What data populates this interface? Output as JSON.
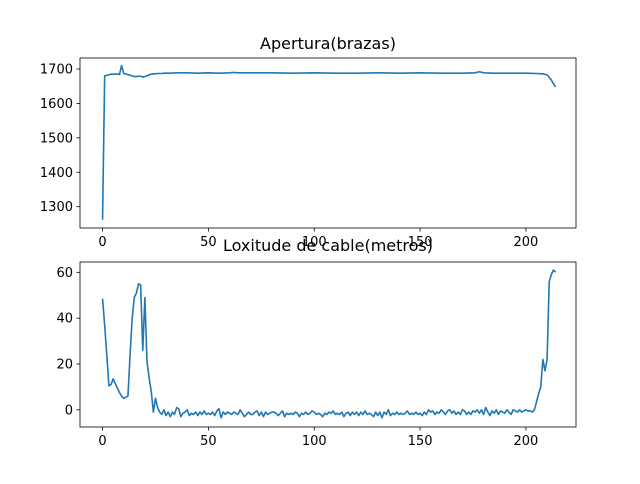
{
  "chart_data": [
    {
      "type": "line",
      "title": "Apertura(brazas)",
      "xlabel": "",
      "ylabel": "",
      "xlim": [
        -10.65,
        223.65
      ],
      "ylim": [
        1238,
        1732
      ],
      "xticks": [
        0,
        50,
        100,
        150,
        200
      ],
      "yticks": [
        1300,
        1400,
        1500,
        1600,
        1700
      ],
      "grid": false,
      "series": [
        {
          "color": "#1f77b4",
          "points": [
            [
              0,
              1262
            ],
            [
              1,
              1680
            ],
            [
              2,
              1682
            ],
            [
              3,
              1683
            ],
            [
              4,
              1685
            ],
            [
              5,
              1685
            ],
            [
              6,
              1685
            ],
            [
              7,
              1686
            ],
            [
              8,
              1684
            ],
            [
              9,
              1710
            ],
            [
              10,
              1687
            ],
            [
              11,
              1685
            ],
            [
              12,
              1684
            ],
            [
              13,
              1682
            ],
            [
              14,
              1680
            ],
            [
              15,
              1678
            ],
            [
              16,
              1678
            ],
            [
              17,
              1679
            ],
            [
              18,
              1679
            ],
            [
              19,
              1677
            ],
            [
              20,
              1678
            ],
            [
              21,
              1680
            ],
            [
              22,
              1683
            ],
            [
              23,
              1685
            ],
            [
              24,
              1686
            ],
            [
              25,
              1686
            ],
            [
              26,
              1687
            ],
            [
              27,
              1687
            ],
            [
              28,
              1687
            ],
            [
              29,
              1688
            ],
            [
              30,
              1688
            ],
            [
              32,
              1688
            ],
            [
              35,
              1689
            ],
            [
              40,
              1689
            ],
            [
              45,
              1688
            ],
            [
              50,
              1689
            ],
            [
              55,
              1688
            ],
            [
              60,
              1689
            ],
            [
              62,
              1690
            ],
            [
              64,
              1689
            ],
            [
              70,
              1689
            ],
            [
              80,
              1689
            ],
            [
              90,
              1688
            ],
            [
              100,
              1689
            ],
            [
              110,
              1688
            ],
            [
              120,
              1688
            ],
            [
              130,
              1689
            ],
            [
              140,
              1688
            ],
            [
              150,
              1689
            ],
            [
              160,
              1688
            ],
            [
              170,
              1688
            ],
            [
              176,
              1689
            ],
            [
              178,
              1692
            ],
            [
              180,
              1689
            ],
            [
              185,
              1688
            ],
            [
              190,
              1688
            ],
            [
              195,
              1688
            ],
            [
              200,
              1688
            ],
            [
              205,
              1687
            ],
            [
              208,
              1686
            ],
            [
              210,
              1683
            ],
            [
              211,
              1676
            ],
            [
              212,
              1668
            ],
            [
              213,
              1657
            ],
            [
              214,
              1648
            ]
          ]
        }
      ]
    },
    {
      "type": "line",
      "title": "Loxitude de cable(metros)",
      "xlabel": "",
      "ylabel": "",
      "xlim": [
        -10.65,
        223.65
      ],
      "ylim": [
        -7.5,
        64.5
      ],
      "xticks": [
        0,
        50,
        100,
        150,
        200
      ],
      "yticks": [
        0,
        20,
        40,
        60
      ],
      "grid": false,
      "series": [
        {
          "color": "#1f77b4",
          "points": [
            [
              0,
              48.5
            ],
            [
              1,
              37
            ],
            [
              2,
              24
            ],
            [
              3,
              10.5
            ],
            [
              4,
              11
            ],
            [
              5,
              13.5
            ],
            [
              6,
              11.5
            ],
            [
              7,
              9.5
            ],
            [
              8,
              7.5
            ],
            [
              9,
              6
            ],
            [
              10,
              5
            ],
            [
              11,
              5.5
            ],
            [
              12,
              6
            ],
            [
              13,
              24
            ],
            [
              14,
              40
            ],
            [
              15,
              49
            ],
            [
              16,
              51
            ],
            [
              17,
              55
            ],
            [
              18,
              54.5
            ],
            [
              19,
              26
            ],
            [
              20,
              49
            ],
            [
              21,
              21
            ],
            [
              22,
              14
            ],
            [
              23,
              8
            ],
            [
              24,
              -1
            ],
            [
              25,
              5
            ],
            [
              26,
              1
            ],
            [
              27,
              -1
            ],
            [
              28,
              -2
            ],
            [
              29,
              0
            ],
            [
              30,
              -2.5
            ],
            [
              31,
              -1
            ],
            [
              32,
              -3
            ],
            [
              33,
              -1
            ],
            [
              34,
              -2
            ],
            [
              35,
              1
            ],
            [
              36,
              0.5
            ],
            [
              37,
              -3
            ],
            [
              38,
              -1.5
            ],
            [
              39,
              -1
            ],
            [
              40,
              0
            ],
            [
              41,
              -2.5
            ],
            [
              42,
              -1.5
            ],
            [
              43,
              -2
            ],
            [
              44,
              -1
            ],
            [
              45,
              -2.5
            ],
            [
              46,
              -1
            ],
            [
              47,
              -2
            ],
            [
              48,
              -0.5
            ],
            [
              49,
              -2
            ],
            [
              50,
              -1.5
            ],
            [
              51,
              -2
            ],
            [
              52,
              -1
            ],
            [
              53,
              -2.5
            ],
            [
              54,
              -0.5
            ],
            [
              55,
              0.5
            ],
            [
              56,
              -3.5
            ],
            [
              57,
              -1
            ],
            [
              58,
              -2
            ],
            [
              59,
              -1
            ],
            [
              60,
              -1.5
            ],
            [
              61,
              -2
            ],
            [
              62,
              -1
            ],
            [
              63,
              -1.5
            ],
            [
              64,
              -2
            ],
            [
              65,
              0
            ],
            [
              66,
              -1.5
            ],
            [
              67,
              -3
            ],
            [
              68,
              -2
            ],
            [
              69,
              -1
            ],
            [
              70,
              -2
            ],
            [
              71,
              -2
            ],
            [
              72,
              -1
            ],
            [
              73,
              -0.5
            ],
            [
              74,
              -2.5
            ],
            [
              75,
              -1
            ],
            [
              76,
              -3
            ],
            [
              77,
              -1
            ],
            [
              78,
              -2
            ],
            [
              79,
              -1.5
            ],
            [
              80,
              -1
            ],
            [
              81,
              -1
            ],
            [
              82,
              -1.5
            ],
            [
              83,
              -2.5
            ],
            [
              84,
              -1.5
            ],
            [
              85,
              -0.5
            ],
            [
              86,
              -3
            ],
            [
              87,
              -1.5
            ],
            [
              88,
              -2
            ],
            [
              89,
              -1.5
            ],
            [
              90,
              -2
            ],
            [
              91,
              -1
            ],
            [
              92,
              -1.5
            ],
            [
              93,
              -3
            ],
            [
              94,
              -1.5
            ],
            [
              95,
              -2
            ],
            [
              96,
              -1
            ],
            [
              97,
              -2
            ],
            [
              98,
              -1.5
            ],
            [
              99,
              -0.5
            ],
            [
              100,
              -1
            ],
            [
              101,
              -2
            ],
            [
              102,
              -1.5
            ],
            [
              103,
              -2
            ],
            [
              104,
              -3
            ],
            [
              105,
              -1.5
            ],
            [
              106,
              -2
            ],
            [
              107,
              -1
            ],
            [
              108,
              -1.5
            ],
            [
              109,
              -0.5
            ],
            [
              110,
              -2
            ],
            [
              111,
              -1.5
            ],
            [
              112,
              -2
            ],
            [
              113,
              -1
            ],
            [
              114,
              -3
            ],
            [
              115,
              -1.5
            ],
            [
              116,
              -1
            ],
            [
              117,
              -2.5
            ],
            [
              118,
              -1
            ],
            [
              119,
              -2
            ],
            [
              120,
              -1
            ],
            [
              121,
              -2.5
            ],
            [
              122,
              -1
            ],
            [
              123,
              -2
            ],
            [
              124,
              -0.5
            ],
            [
              125,
              -2
            ],
            [
              126,
              -1.5
            ],
            [
              127,
              -2
            ],
            [
              128,
              -3
            ],
            [
              129,
              -1
            ],
            [
              130,
              -2.5
            ],
            [
              131,
              -1
            ],
            [
              132,
              -3.5
            ],
            [
              133,
              -1
            ],
            [
              134,
              -2
            ],
            [
              135,
              0
            ],
            [
              136,
              -2.5
            ],
            [
              137,
              -1.5
            ],
            [
              138,
              -2
            ],
            [
              139,
              -1
            ],
            [
              140,
              -2
            ],
            [
              141,
              -1.5
            ],
            [
              142,
              -2
            ],
            [
              143,
              -1.5
            ],
            [
              144,
              -0.5
            ],
            [
              145,
              -2
            ],
            [
              146,
              -1.5
            ],
            [
              147,
              -2
            ],
            [
              148,
              -1
            ],
            [
              149,
              -2
            ],
            [
              150,
              -1.5
            ],
            [
              151,
              -2.5
            ],
            [
              152,
              -1
            ],
            [
              153,
              -2
            ],
            [
              154,
              0
            ],
            [
              155,
              -1
            ],
            [
              156,
              -0.5
            ],
            [
              157,
              -2
            ],
            [
              158,
              -1
            ],
            [
              159,
              -1.5
            ],
            [
              160,
              0
            ],
            [
              161,
              -1
            ],
            [
              162,
              -2
            ],
            [
              163,
              -0.5
            ],
            [
              164,
              0
            ],
            [
              165,
              -1.5
            ],
            [
              166,
              -0.5
            ],
            [
              167,
              -2
            ],
            [
              168,
              -1
            ],
            [
              169,
              -2
            ],
            [
              170,
              0
            ],
            [
              171,
              -0.5
            ],
            [
              172,
              -2
            ],
            [
              173,
              -1
            ],
            [
              174,
              -2
            ],
            [
              175,
              -0.5
            ],
            [
              176,
              -1
            ],
            [
              177,
              0
            ],
            [
              178,
              -1.5
            ],
            [
              179,
              0
            ],
            [
              180,
              -2
            ],
            [
              181,
              1
            ],
            [
              182,
              -1
            ],
            [
              183,
              -2.5
            ],
            [
              184,
              -0.5
            ],
            [
              185,
              -1.5
            ],
            [
              186,
              0
            ],
            [
              187,
              -2
            ],
            [
              188,
              -0.5
            ],
            [
              189,
              -1
            ],
            [
              190,
              -1.5
            ],
            [
              191,
              0
            ],
            [
              192,
              -1
            ],
            [
              193,
              -2
            ],
            [
              194,
              0
            ],
            [
              195,
              -0.5
            ],
            [
              196,
              -1
            ],
            [
              197,
              0
            ],
            [
              198,
              -1
            ],
            [
              199,
              -0.5
            ],
            [
              200,
              0
            ],
            [
              201,
              -0.5
            ],
            [
              202,
              -0.5
            ],
            [
              203,
              -1
            ],
            [
              204,
              0
            ],
            [
              205,
              3.5
            ],
            [
              206,
              7
            ],
            [
              207,
              10
            ],
            [
              208,
              22
            ],
            [
              209,
              17
            ],
            [
              210,
              22
            ],
            [
              211,
              56
            ],
            [
              212,
              59
            ],
            [
              213,
              61
            ],
            [
              214,
              60
            ]
          ]
        }
      ]
    }
  ]
}
